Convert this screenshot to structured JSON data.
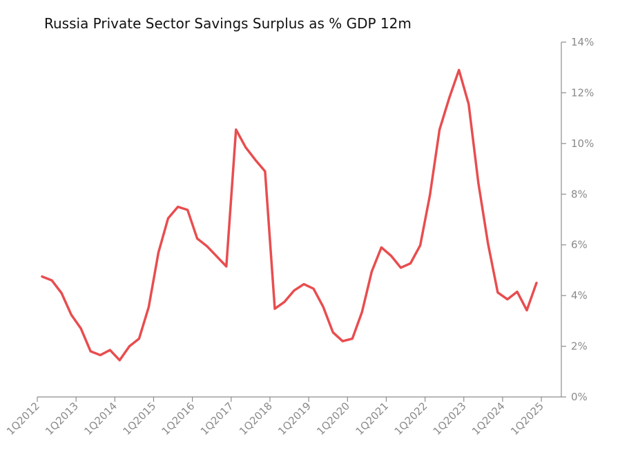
{
  "chart_data": {
    "type": "line",
    "title": "Russia Private Sector Savings Surplus as % GDP 12m",
    "xlabel": "",
    "ylabel": "",
    "ylim": [
      0,
      14
    ],
    "y_ticks": [
      0,
      2,
      4,
      6,
      8,
      10,
      12,
      14
    ],
    "y_tick_labels": [
      "0%",
      "2%",
      "4%",
      "6%",
      "8%",
      "10%",
      "12%",
      "14%"
    ],
    "x_tick_labels": [
      "1Q2012",
      "1Q2013",
      "1Q2014",
      "1Q2015",
      "1Q2016",
      "1Q2017",
      "1Q2018",
      "1Q2019",
      "1Q2020",
      "1Q2021",
      "1Q2022",
      "1Q2023",
      "1Q2024",
      "1Q2025"
    ],
    "y_axis_position": "right",
    "grid": false,
    "series": [
      {
        "name": "Russia Private Sector Savings Surplus as % GDP 12m",
        "color": "#e84d4f",
        "x": [
          "1Q2012",
          "2Q2012",
          "3Q2012",
          "4Q2012",
          "1Q2013",
          "2Q2013",
          "3Q2013",
          "4Q2013",
          "1Q2014",
          "2Q2014",
          "3Q2014",
          "4Q2014",
          "1Q2015",
          "2Q2015",
          "3Q2015",
          "4Q2015",
          "1Q2016",
          "2Q2016",
          "3Q2016",
          "4Q2016",
          "1Q2017",
          "2Q2017",
          "3Q2017",
          "4Q2017",
          "1Q2018",
          "2Q2018",
          "3Q2018",
          "4Q2018",
          "1Q2019",
          "2Q2019",
          "3Q2019",
          "4Q2019",
          "1Q2020",
          "2Q2020",
          "3Q2020",
          "4Q2020",
          "1Q2021",
          "2Q2021",
          "3Q2021",
          "4Q2021",
          "1Q2022",
          "2Q2022",
          "3Q2022",
          "4Q2022",
          "1Q2023",
          "2Q2023",
          "3Q2023",
          "4Q2023",
          "1Q2024",
          "2Q2024",
          "3Q2024",
          "4Q2024"
        ],
        "values": [
          4.75,
          4.6,
          4.1,
          3.25,
          2.7,
          1.8,
          1.65,
          1.85,
          1.45,
          2.0,
          2.3,
          3.55,
          5.7,
          7.05,
          7.5,
          7.38,
          6.25,
          5.95,
          5.55,
          5.15,
          10.55,
          9.85,
          9.35,
          8.9,
          3.48,
          3.75,
          4.2,
          4.45,
          4.27,
          3.55,
          2.55,
          2.2,
          2.3,
          3.35,
          4.95,
          5.9,
          5.57,
          5.1,
          5.27,
          5.98,
          7.95,
          10.55,
          11.8,
          12.9,
          11.55,
          8.45,
          6.05,
          4.12,
          3.85,
          4.15,
          3.42,
          4.5
        ]
      }
    ]
  }
}
